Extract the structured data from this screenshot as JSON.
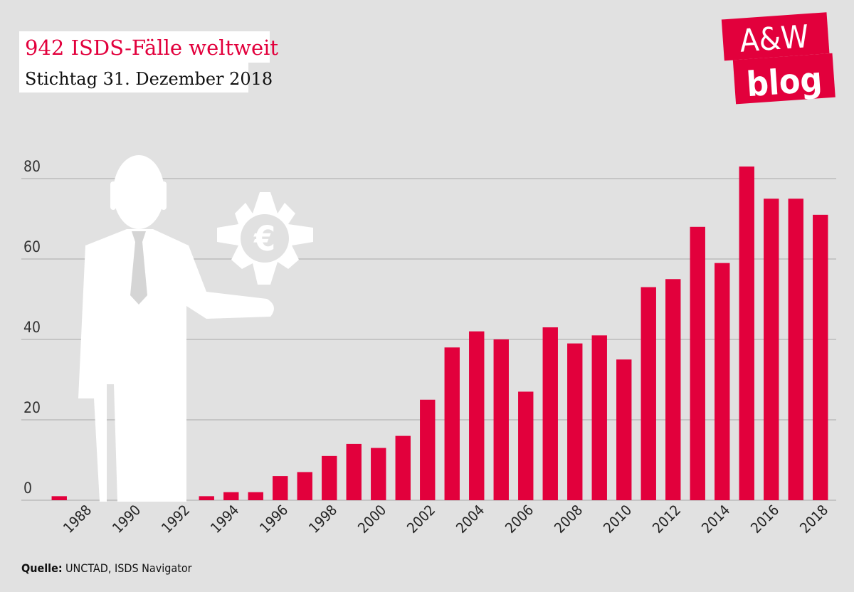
{
  "chart_data": {
    "type": "bar",
    "title": "942 ISDS-Fälle weltweit",
    "subtitle": "Stichtag 31. Dezember 2018",
    "source_label": "Quelle:",
    "source": "UNCTAD, ISDS Navigator",
    "logo": [
      "A&W",
      "blog"
    ],
    "categories": [
      null,
      "1988",
      null,
      "1990",
      null,
      "1992",
      null,
      "1994",
      null,
      "1996",
      null,
      "1998",
      null,
      "2000",
      null,
      "2002",
      null,
      "2004",
      null,
      "2006",
      null,
      "2008",
      null,
      "2010",
      null,
      "2012",
      null,
      "2014",
      null,
      "2016",
      null,
      "2018"
    ],
    "values": [
      1,
      0,
      0,
      0,
      0,
      0,
      1,
      2,
      2,
      6,
      7,
      11,
      14,
      13,
      16,
      25,
      38,
      42,
      40,
      27,
      43,
      39,
      41,
      35,
      53,
      55,
      68,
      59,
      83,
      75,
      75,
      71
    ],
    "color": "#e2003c",
    "ylim": [
      0,
      80
    ],
    "yticks": [
      0,
      20,
      40,
      60,
      80
    ],
    "grid": true
  }
}
